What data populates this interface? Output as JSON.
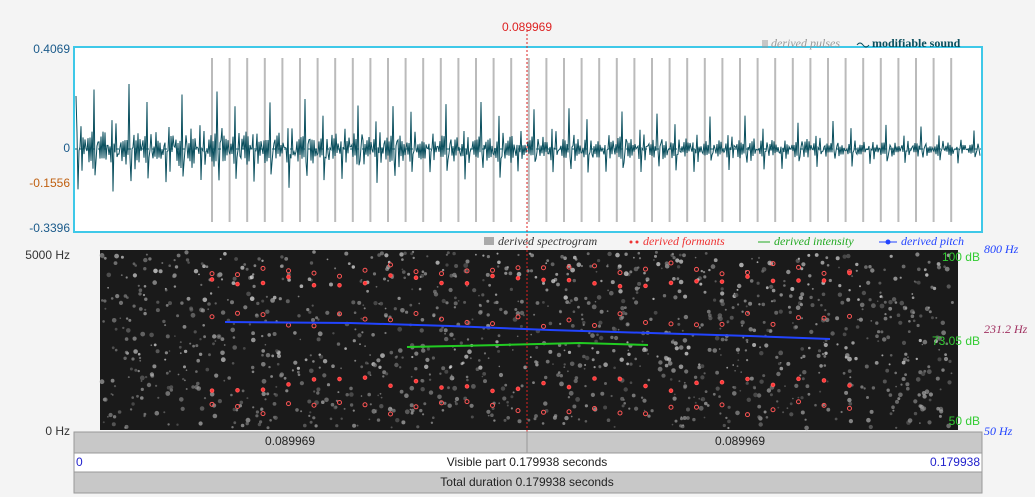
{
  "cursor": {
    "time": "0.089969"
  },
  "waveform": {
    "axis_labels": [
      "0.4069",
      "0",
      "-0.1556",
      "-0.3396"
    ],
    "legend": {
      "pulses": "derived pulses",
      "sound": "modifiable sound"
    }
  },
  "spectrogram": {
    "freq_top": "5000 Hz",
    "freq_bottom": "0 Hz",
    "pitch_labels": [
      "800 Hz",
      "231.2 Hz",
      "50 Hz"
    ],
    "intensity_labels": [
      "100 dB",
      "73.05 dB",
      "50 dB"
    ],
    "legend": {
      "spectrogram": "derived spectrogram",
      "formants": "derived formants",
      "intensity": "derived intensity",
      "pitch": "derived pitch"
    }
  },
  "bars": {
    "left_half": "0.089969",
    "right_half": "0.089969",
    "visible_start": "0",
    "visible_text": "Visible part 0.179938 seconds",
    "visible_end": "0.179938",
    "total": "Total duration 0.179938 seconds"
  }
}
